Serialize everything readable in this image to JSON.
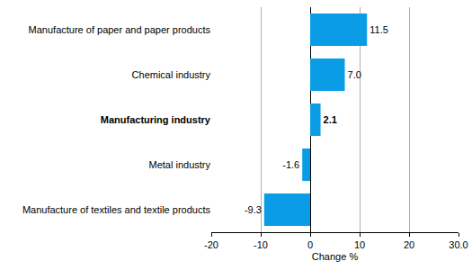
{
  "chart_data": {
    "type": "bar",
    "orientation": "horizontal",
    "categories": [
      "Manufacture of paper and paper products",
      "Chemical industry",
      "Manufacturing industry",
      "Metal industry",
      "Manufacture of textiles and textile products"
    ],
    "values": [
      11.5,
      7.0,
      2.1,
      -1.6,
      -9.3
    ],
    "value_labels": [
      "11.5",
      "7.0",
      "2.1",
      "-1.6",
      "-9.3"
    ],
    "data_labels": true,
    "color": "#0a9de6",
    "xlabel": "Change %",
    "xlim": [
      -20,
      30
    ],
    "xticks": [
      -20,
      -10,
      0,
      10,
      20,
      {
        "value": 30,
        "label": "30.0"
      }
    ],
    "grid": true
  }
}
